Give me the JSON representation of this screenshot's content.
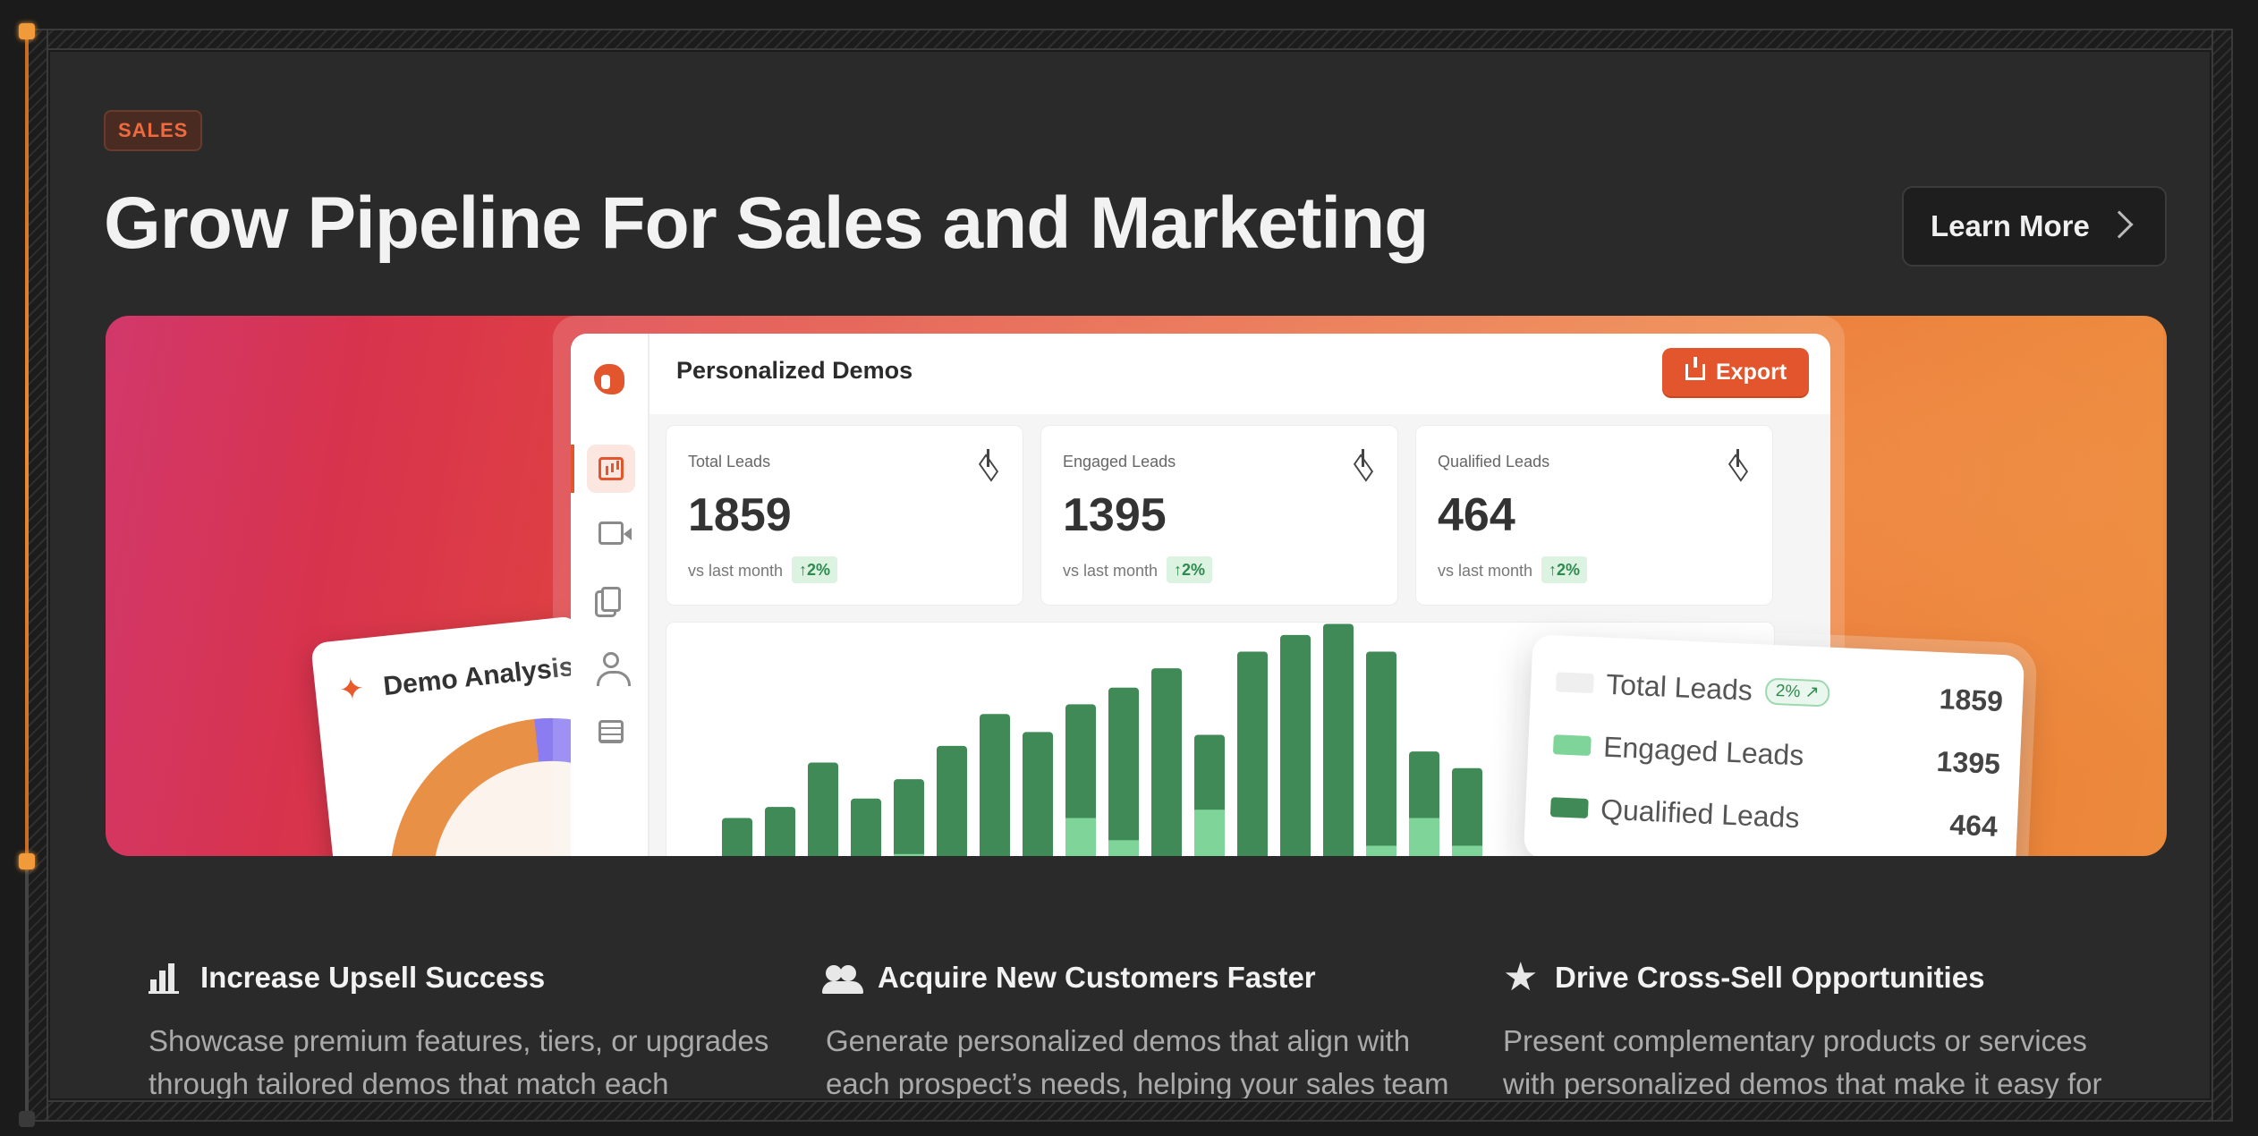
{
  "section_tag": "SALES",
  "headline": "Grow Pipeline For Sales and Marketing",
  "cta": {
    "label": "Learn More"
  },
  "hero": {
    "analysis_card": {
      "label": "Demo Analysis"
    },
    "dashboard": {
      "title": "Personalized Demos",
      "export_label": "Export",
      "stats": [
        {
          "label": "Total Leads",
          "value": "1859",
          "compare": "vs last month",
          "change": "↑2%"
        },
        {
          "label": "Engaged Leads",
          "value": "1395",
          "compare": "vs last month",
          "change": "↑2%"
        },
        {
          "label": "Qualified Leads",
          "value": "464",
          "compare": "vs last month",
          "change": "↑2%"
        }
      ]
    },
    "legend": {
      "rows": [
        {
          "name": "Total Leads",
          "value": "1859",
          "badge": "2% ↗",
          "color": "#efefef"
        },
        {
          "name": "Engaged Leads",
          "value": "1395",
          "color": "#7fd49a"
        },
        {
          "name": "Qualified Leads",
          "value": "464",
          "color": "#3f8a57"
        }
      ]
    }
  },
  "features": [
    {
      "icon": "bar-chart-icon",
      "title": "Increase Upsell Success",
      "description": "Showcase premium features, tiers, or upgrades through tailored demos that match each customer’s current usage and contract."
    },
    {
      "icon": "users-icon",
      "title": "Acquire New Customers Faster",
      "description": "Generate personalized demos that align with each prospect’s needs, helping your sales team stand out and close more deals."
    },
    {
      "icon": "star-icon",
      "title": "Drive Cross-Sell Opportunities",
      "description": "Present complementary products or services with personalized demos that make it easy for existing customers to see added value."
    }
  ],
  "colors": {
    "accent": "#e2552d",
    "qualified": "#3f8a57",
    "engaged": "#7fd49a",
    "background": "#2a2a2a"
  },
  "chart_data": {
    "type": "bar",
    "series": [
      {
        "values": [
          30,
          38,
          70,
          44,
          58,
          82,
          105,
          92,
          112,
          124,
          138,
          90,
          150,
          162,
          170,
          150,
          78,
          66
        ]
      },
      {
        "values": [
          0,
          0,
          0,
          0,
          4,
          0,
          0,
          0,
          30,
          14,
          0,
          36,
          0,
          0,
          0,
          10,
          30,
          10
        ]
      }
    ]
  }
}
